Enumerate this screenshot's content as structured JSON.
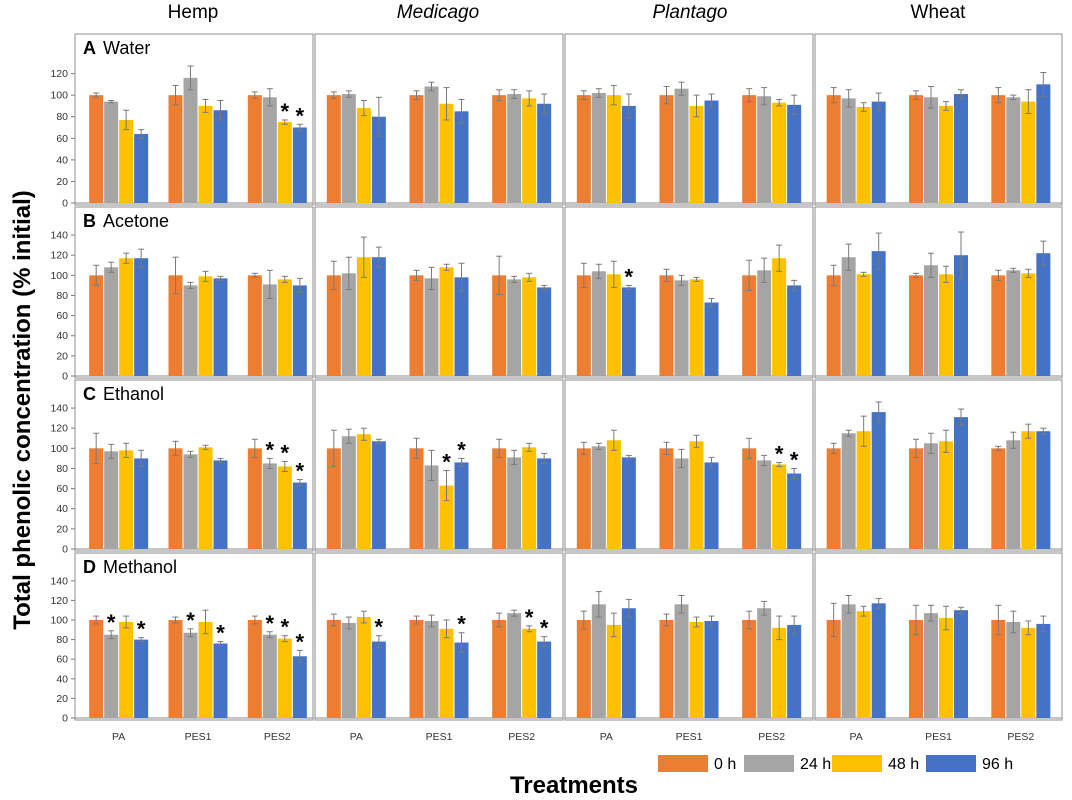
{
  "chart_data": {
    "type": "bar",
    "column_titles": [
      "Hemp",
      "Medicago",
      "Plantago",
      "Wheat"
    ],
    "column_title_italic": [
      false,
      true,
      true,
      false
    ],
    "panel_letters": [
      "A",
      "B",
      "C",
      "D"
    ],
    "panel_titles": [
      "Water",
      "Acetone",
      "Ethanol",
      "Methanol"
    ],
    "categories": [
      "PA",
      "PES1",
      "PES2"
    ],
    "series_names": [
      "0 h",
      "24 h",
      "48 h",
      "96 h"
    ],
    "colors": [
      "#ED7D31",
      "#A5A5A5",
      "#FFC000",
      "#4472C4"
    ],
    "ylabel": "Total phenolic concentration (% initial)",
    "xlabel": "Treatments",
    "y_ranges": [
      {
        "min": 0,
        "max": 140,
        "ticks": [
          0,
          20,
          40,
          60,
          80,
          100,
          120
        ]
      },
      {
        "min": 0,
        "max": 150,
        "ticks": [
          0,
          20,
          40,
          60,
          80,
          100,
          120,
          140
        ]
      },
      {
        "min": 0,
        "max": 150,
        "ticks": [
          0,
          20,
          40,
          60,
          80,
          100,
          120,
          140
        ]
      },
      {
        "min": 0,
        "max": 150,
        "ticks": [
          0,
          20,
          40,
          60,
          80,
          100,
          120,
          140
        ]
      }
    ],
    "values": [
      [
        [
          [
            100,
            94,
            77,
            64
          ],
          [
            100,
            116,
            90,
            86
          ],
          [
            100,
            98,
            75,
            70
          ]
        ],
        [
          [
            100,
            101,
            88,
            80
          ],
          [
            100,
            108,
            92,
            85
          ],
          [
            100,
            101,
            97,
            92
          ]
        ],
        [
          [
            100,
            102,
            100,
            90
          ],
          [
            100,
            106,
            90,
            95
          ],
          [
            100,
            99,
            93,
            91
          ]
        ],
        [
          [
            100,
            97,
            89,
            94
          ],
          [
            100,
            98,
            90,
            101
          ],
          [
            100,
            98,
            94,
            110
          ]
        ]
      ],
      [
        [
          [
            100,
            108,
            117,
            117
          ],
          [
            100,
            90,
            99,
            97
          ],
          [
            100,
            91,
            96,
            90
          ]
        ],
        [
          [
            100,
            102,
            118,
            118
          ],
          [
            100,
            97,
            108,
            98
          ],
          [
            100,
            96,
            98,
            88
          ]
        ],
        [
          [
            100,
            104,
            101,
            88
          ],
          [
            100,
            95,
            96,
            73
          ],
          [
            100,
            105,
            117,
            90
          ]
        ],
        [
          [
            100,
            118,
            101,
            124
          ],
          [
            100,
            110,
            101,
            120
          ],
          [
            100,
            105,
            102,
            122
          ]
        ]
      ],
      [
        [
          [
            100,
            97,
            98,
            90
          ],
          [
            100,
            94,
            101,
            88
          ],
          [
            100,
            85,
            82,
            66
          ]
        ],
        [
          [
            100,
            112,
            114,
            107
          ],
          [
            100,
            83,
            63,
            86
          ],
          [
            100,
            91,
            101,
            90
          ]
        ],
        [
          [
            100,
            102,
            108,
            91
          ],
          [
            100,
            90,
            107,
            86
          ],
          [
            100,
            88,
            84,
            75
          ]
        ],
        [
          [
            100,
            115,
            117,
            136
          ],
          [
            100,
            105,
            107,
            131
          ],
          [
            100,
            108,
            117,
            117
          ]
        ]
      ],
      [
        [
          [
            100,
            85,
            98,
            80
          ],
          [
            100,
            87,
            98,
            76
          ],
          [
            100,
            85,
            81,
            63
          ]
        ],
        [
          [
            100,
            97,
            103,
            78
          ],
          [
            100,
            99,
            91,
            77
          ],
          [
            100,
            107,
            91,
            78
          ]
        ],
        [
          [
            100,
            116,
            95,
            112
          ],
          [
            100,
            116,
            98,
            99
          ],
          [
            100,
            112,
            92,
            95
          ]
        ],
        [
          [
            100,
            116,
            109,
            117
          ],
          [
            100,
            107,
            102,
            110
          ],
          [
            100,
            98,
            92,
            96
          ]
        ]
      ]
    ],
    "errors": [
      [
        [
          [
            2,
            1,
            9,
            4
          ],
          [
            9,
            11,
            6,
            9
          ],
          [
            3,
            8,
            2,
            3
          ]
        ],
        [
          [
            3,
            3,
            7,
            18
          ],
          [
            4,
            4,
            15,
            11
          ],
          [
            5,
            4,
            7,
            9
          ]
        ],
        [
          [
            4,
            4,
            9,
            11
          ],
          [
            8,
            6,
            10,
            6
          ],
          [
            6,
            8,
            3,
            9
          ]
        ],
        [
          [
            7,
            8,
            4,
            8
          ],
          [
            4,
            10,
            4,
            4
          ],
          [
            7,
            2,
            11,
            11
          ]
        ]
      ],
      [
        [
          [
            10,
            5,
            5,
            9
          ],
          [
            18,
            3,
            5,
            2
          ],
          [
            2,
            14,
            3,
            7
          ]
        ],
        [
          [
            14,
            16,
            20,
            10
          ],
          [
            5,
            11,
            3,
            14
          ],
          [
            19,
            3,
            4,
            2
          ]
        ],
        [
          [
            12,
            7,
            13,
            2
          ],
          [
            6,
            5,
            2,
            4
          ],
          [
            15,
            12,
            13,
            5
          ]
        ],
        [
          [
            10,
            13,
            2,
            18
          ],
          [
            2,
            12,
            8,
            23
          ],
          [
            5,
            2,
            4,
            12
          ]
        ]
      ],
      [
        [
          [
            15,
            7,
            7,
            8
          ],
          [
            7,
            3,
            2,
            2
          ],
          [
            9,
            5,
            5,
            3
          ]
        ],
        [
          [
            18,
            7,
            6,
            2
          ],
          [
            10,
            15,
            15,
            4
          ],
          [
            9,
            7,
            4,
            5
          ]
        ],
        [
          [
            6,
            3,
            10,
            2
          ],
          [
            6,
            9,
            6,
            5
          ],
          [
            10,
            5,
            2,
            5
          ]
        ],
        [
          [
            5,
            3,
            15,
            10
          ],
          [
            9,
            10,
            11,
            8
          ],
          [
            2,
            8,
            7,
            3
          ]
        ]
      ],
      [
        [
          [
            4,
            4,
            6,
            2
          ],
          [
            3,
            4,
            12,
            2
          ],
          [
            4,
            3,
            3,
            6
          ]
        ],
        [
          [
            6,
            6,
            6,
            6
          ],
          [
            4,
            6,
            9,
            10
          ],
          [
            7,
            3,
            3,
            5
          ]
        ],
        [
          [
            9,
            13,
            12,
            9
          ],
          [
            6,
            9,
            5,
            5
          ],
          [
            9,
            7,
            12,
            9
          ]
        ],
        [
          [
            17,
            9,
            5,
            5
          ],
          [
            15,
            8,
            12,
            3
          ],
          [
            15,
            11,
            7,
            8
          ]
        ]
      ]
    ],
    "asterisks": [
      [
        [
          [],
          [],
          [
            2,
            3
          ]
        ],
        [
          [],
          [],
          []
        ],
        [
          [],
          [],
          []
        ],
        [
          [],
          [],
          []
        ]
      ],
      [
        [
          [],
          [],
          []
        ],
        [
          [],
          [],
          []
        ],
        [
          [
            3
          ],
          [],
          []
        ],
        [
          [],
          [],
          []
        ]
      ],
      [
        [
          [],
          [],
          [
            1,
            2,
            3
          ]
        ],
        [
          [],
          [
            2,
            3
          ],
          []
        ],
        [
          [],
          [],
          [
            2,
            3
          ]
        ],
        [
          [],
          [],
          []
        ]
      ],
      [
        [
          [
            1,
            3
          ],
          [
            1,
            3
          ],
          [
            1,
            2,
            3
          ]
        ],
        [
          [
            3
          ],
          [
            3
          ],
          [
            2,
            3
          ]
        ],
        [
          [],
          [],
          []
        ],
        [
          [],
          [],
          []
        ]
      ]
    ],
    "legend_position": "bottom-right"
  }
}
